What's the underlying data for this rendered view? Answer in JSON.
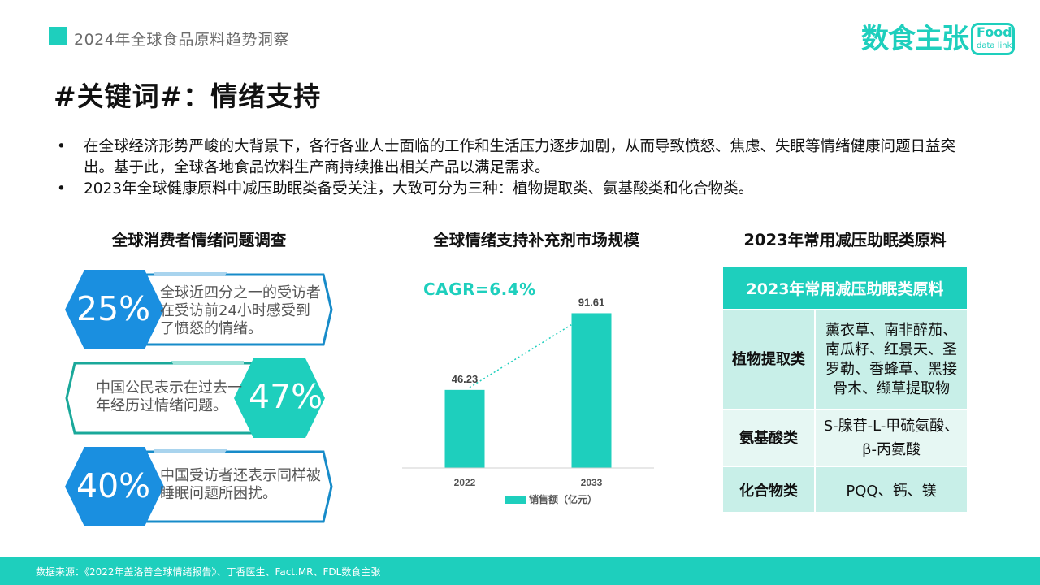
{
  "header": {
    "title": "2024年全球食品原料趋势洞察"
  },
  "logo": {
    "text": "数食主张",
    "box_top": "Food",
    "box_bottom": "data link"
  },
  "main_title": "#关键词#：情绪支持",
  "bullets": [
    "在全球经济形势严峻的大背景下，各行各业人士面临的工作和生活压力逐步加剧，从而导致愤怒、焦虑、失眠等情绪健康问题日益突出。基于此，全球各地食品饮料生产商持续推出相关产品以满足需求。",
    "2023年全球健康原料中减压助眠类备受关注，大致可分为三种：植物提取类、氨基酸类和化合物类。"
  ],
  "survey": {
    "title": "全球消费者情绪问题调查",
    "cards": [
      {
        "pct": "25%",
        "desc": "全球近四分之一的受访者在受访前24小时感受到了愤怒的情绪。"
      },
      {
        "pct": "47%",
        "desc": "中国公民表示在过去一年经历过情绪问题。"
      },
      {
        "pct": "40%",
        "desc": "中国受访者还表示同样被睡眠问题所困扰。"
      }
    ]
  },
  "market": {
    "title": "全球情绪支持补充剂市场规模",
    "cagr": "CAGR=6.4%"
  },
  "chart_data": {
    "type": "bar",
    "categories": [
      "2022",
      "2033"
    ],
    "series": [
      {
        "name": "销售额（亿元）",
        "values": [
          46.23,
          91.61
        ]
      }
    ],
    "value_labels": [
      "46.23",
      "91.61"
    ],
    "ylim": [
      0,
      100
    ],
    "annotation": "CAGR=6.4%",
    "grid": false,
    "legend": "bottom",
    "color": "#1ecfbd"
  },
  "ingredients": {
    "title": "2023年常用减压助眠类原料",
    "table_header": "2023年常用减压助眠类原料",
    "rows": [
      {
        "category": "植物提取类",
        "items": [
          "薰衣草、南非醉茄、",
          "南瓜籽、红景天、圣",
          "罗勒、香蜂草、黑接",
          "骨木、缬草提取物"
        ]
      },
      {
        "category": "氨基酸类",
        "items": [
          "S-腺苷-L-甲硫氨酸、",
          "β-丙氨酸"
        ]
      },
      {
        "category": "化合物类",
        "items": [
          "PQQ、钙、镁"
        ]
      }
    ]
  },
  "footer": {
    "source": "数据来源：《2022年盖洛普全球情绪报告》、丁香医生、Fact.MR、FDL数食主张"
  },
  "colors": {
    "accent": "#1ecfbd",
    "hex_blue": "#1a8fe0",
    "card_border": "#178bc9"
  }
}
